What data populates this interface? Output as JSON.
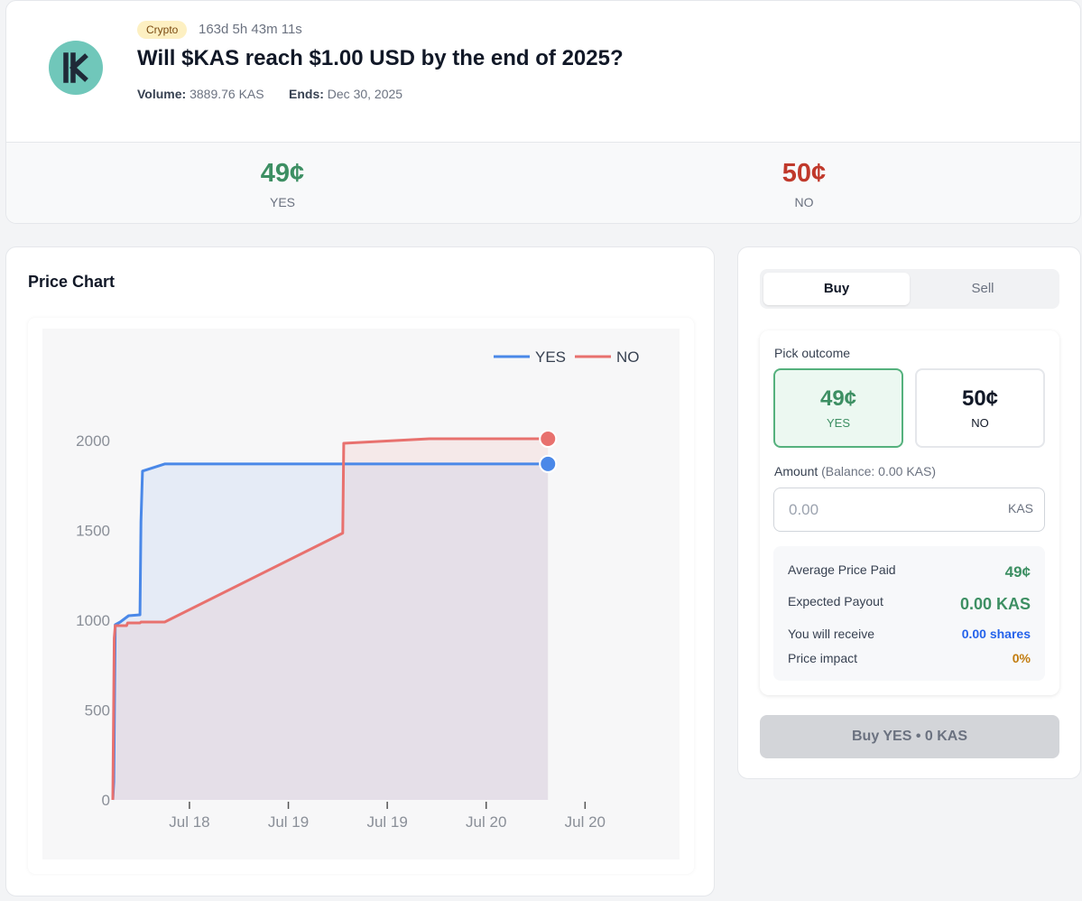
{
  "market": {
    "category": "Crypto",
    "countdown": "163d 5h 43m 11s",
    "question": "Will $KAS reach $1.00 USD by the end of 2025?",
    "volume_label": "Volume:",
    "volume_value": "3889.76 KAS",
    "ends_label": "Ends:",
    "ends_value": "Dec 30, 2025",
    "logo_icon": "kaspa-logo-icon"
  },
  "prices": {
    "yes_price": "49¢",
    "yes_label": "YES",
    "no_price": "50¢",
    "no_label": "NO"
  },
  "colors": {
    "yes": "#3d8f63",
    "no": "#c0392b",
    "yes_line": "#4a88e8",
    "no_line": "#e8716e",
    "shares": "#2563eb",
    "impact": "#c27c0e"
  },
  "chart": {
    "title": "Price Chart"
  },
  "chart_data": {
    "type": "line",
    "legend_position": "top-right",
    "grid": false,
    "ylim": [
      0,
      2300
    ],
    "yticks": [
      0,
      500,
      1000,
      1500,
      2000
    ],
    "x_tick_labels": [
      "Jul 18",
      "Jul 19",
      "Jul 19",
      "Jul 20",
      "Jul 20"
    ],
    "xlim": [
      0,
      100
    ],
    "x_ticks": [
      15.5,
      35.5,
      55.5,
      75.5,
      95.5
    ],
    "series": [
      {
        "name": "YES",
        "color": "#4a88e8",
        "x": [
          0,
          0.2,
          0.5,
          1.5,
          3.2,
          5.5,
          5.7,
          6.0,
          10.5,
          17,
          55,
          88
        ],
        "y": [
          0,
          100,
          975,
          990,
          1025,
          1030,
          1550,
          1830,
          1870,
          1870,
          1870,
          1870
        ]
      },
      {
        "name": "NO",
        "color": "#e8716e",
        "x": [
          0,
          0.3,
          0.5,
          2.8,
          3.0,
          5.5,
          5.7,
          10.5,
          46.5,
          46.7,
          64,
          88
        ],
        "y": [
          0,
          900,
          970,
          970,
          985,
          985,
          990,
          990,
          1485,
          1985,
          2010,
          2010
        ]
      }
    ]
  },
  "trade": {
    "tab_buy": "Buy",
    "tab_sell": "Sell",
    "pick_outcome_label": "Pick outcome",
    "outcome_yes_price": "49¢",
    "outcome_yes_label": "YES",
    "outcome_no_price": "50¢",
    "outcome_no_label": "NO",
    "amount_label": "Amount",
    "balance_label": "(Balance: 0.00 KAS)",
    "amount_placeholder": "0.00",
    "amount_unit": "KAS",
    "avg_price_label": "Average Price Paid",
    "avg_price_value": "49¢",
    "payout_label": "Expected Payout",
    "payout_value": "0.00 KAS",
    "receive_label": "You will receive",
    "receive_value": "0.00 shares",
    "impact_label": "Price impact",
    "impact_value": "0%",
    "buy_button": "Buy YES • 0 KAS"
  }
}
